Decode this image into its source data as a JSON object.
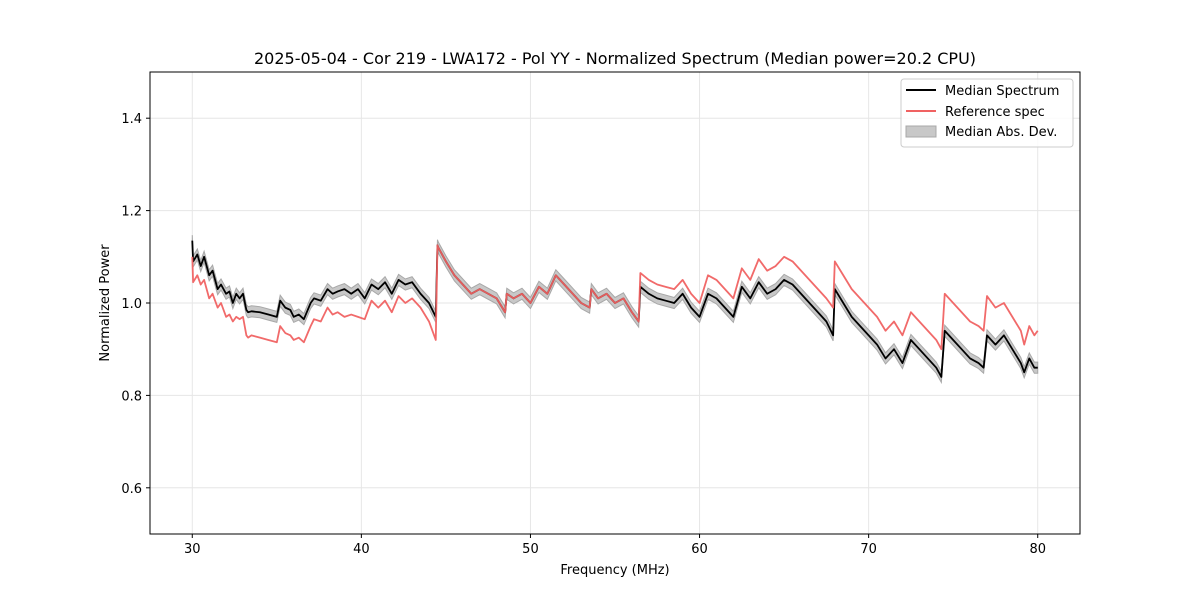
{
  "chart_data": {
    "type": "line",
    "title": "2025-05-04 - Cor 219 - LWA172 - Pol YY - Normalized Spectrum (Median power=20.2 CPU)",
    "xlabel": "Frequency (MHz)",
    "ylabel": "Normalized Power",
    "xlim": [
      27.5,
      82.5
    ],
    "ylim": [
      0.5,
      1.5
    ],
    "xticks": [
      30,
      40,
      50,
      60,
      70,
      80
    ],
    "yticks": [
      0.6,
      0.8,
      1.0,
      1.2,
      1.4
    ],
    "xtick_labels": [
      "30",
      "40",
      "50",
      "60",
      "70",
      "80"
    ],
    "ytick_labels": [
      "0.6",
      "0.8",
      "1.0",
      "1.2",
      "1.4"
    ],
    "grid": true,
    "legend_position": "top-right",
    "colors": {
      "median": "#000000",
      "reference": "#f06262",
      "mad_fill": "#c8c8c8",
      "mad_edge": "#a8a8a8",
      "grid": "#e6e6e6"
    },
    "series": [
      {
        "name": "Median Spectrum",
        "x": [
          30.0,
          30.05,
          30.3,
          30.5,
          30.7,
          31.0,
          31.2,
          31.5,
          31.7,
          32.0,
          32.2,
          32.4,
          32.6,
          32.8,
          33.0,
          33.2,
          33.3,
          33.5,
          34.0,
          34.5,
          35.0,
          35.2,
          35.5,
          35.8,
          36.0,
          36.3,
          36.6,
          37.0,
          37.2,
          37.6,
          38.0,
          38.3,
          38.6,
          39.0,
          39.4,
          39.8,
          40.2,
          40.6,
          41.0,
          41.4,
          41.8,
          42.2,
          42.6,
          43.0,
          43.5,
          44.0,
          44.4,
          44.5,
          44.55,
          45.0,
          45.5,
          46.0,
          46.5,
          47.0,
          47.5,
          48.0,
          48.5,
          48.6,
          49.0,
          49.5,
          50.0,
          50.5,
          51.0,
          51.5,
          52.0,
          52.5,
          53.0,
          53.5,
          53.6,
          54.0,
          54.5,
          55.0,
          55.5,
          56.0,
          56.4,
          56.5,
          57.0,
          57.5,
          58.0,
          58.5,
          59.0,
          59.5,
          60.0,
          60.5,
          61.0,
          61.5,
          62.0,
          62.5,
          63.0,
          63.5,
          64.0,
          64.5,
          65.0,
          65.5,
          66.0,
          66.5,
          67.0,
          67.5,
          67.9,
          68.0,
          68.5,
          69.0,
          69.5,
          70.0,
          70.5,
          71.0,
          71.5,
          72.0,
          72.5,
          73.0,
          73.5,
          74.0,
          74.3,
          74.5,
          75.0,
          75.5,
          76.0,
          76.5,
          76.8,
          77.0,
          77.5,
          78.0,
          78.5,
          79.0,
          79.2,
          79.5,
          79.8,
          80.0
        ],
        "values": [
          1.135,
          1.09,
          1.105,
          1.08,
          1.1,
          1.06,
          1.07,
          1.03,
          1.04,
          1.02,
          1.025,
          1.0,
          1.02,
          1.01,
          1.02,
          0.985,
          0.98,
          0.982,
          0.98,
          0.975,
          0.97,
          1.005,
          0.99,
          0.985,
          0.97,
          0.975,
          0.965,
          1.0,
          1.01,
          1.005,
          1.03,
          1.02,
          1.025,
          1.03,
          1.02,
          1.03,
          1.01,
          1.04,
          1.03,
          1.045,
          1.02,
          1.05,
          1.04,
          1.045,
          1.02,
          1.0,
          0.97,
          1.125,
          1.12,
          1.09,
          1.06,
          1.04,
          1.02,
          1.03,
          1.02,
          1.01,
          0.98,
          1.02,
          1.01,
          1.02,
          1.0,
          1.035,
          1.02,
          1.06,
          1.04,
          1.02,
          1.0,
          0.99,
          1.03,
          1.01,
          1.02,
          1.0,
          1.01,
          0.98,
          0.96,
          1.035,
          1.02,
          1.01,
          1.005,
          1.0,
          1.02,
          0.99,
          0.97,
          1.02,
          1.01,
          0.99,
          0.97,
          1.035,
          1.01,
          1.045,
          1.02,
          1.03,
          1.05,
          1.04,
          1.02,
          1.0,
          0.98,
          0.96,
          0.93,
          1.03,
          1.0,
          0.97,
          0.95,
          0.93,
          0.91,
          0.88,
          0.9,
          0.87,
          0.92,
          0.9,
          0.88,
          0.86,
          0.84,
          0.94,
          0.92,
          0.9,
          0.88,
          0.87,
          0.86,
          0.93,
          0.91,
          0.93,
          0.9,
          0.87,
          0.85,
          0.88,
          0.86,
          0.86
        ]
      },
      {
        "name": "Reference spec",
        "x": [
          30.0,
          30.05,
          30.3,
          30.5,
          30.7,
          31.0,
          31.2,
          31.5,
          31.7,
          32.0,
          32.2,
          32.4,
          32.6,
          32.8,
          33.0,
          33.2,
          33.3,
          33.5,
          34.0,
          34.5,
          35.0,
          35.2,
          35.5,
          35.8,
          36.0,
          36.3,
          36.6,
          37.0,
          37.2,
          37.6,
          38.0,
          38.3,
          38.6,
          39.0,
          39.4,
          39.8,
          40.2,
          40.6,
          41.0,
          41.4,
          41.8,
          42.2,
          42.6,
          43.0,
          43.5,
          44.0,
          44.4,
          44.5,
          44.55,
          45.0,
          45.5,
          46.0,
          46.5,
          47.0,
          47.5,
          48.0,
          48.5,
          48.6,
          49.0,
          49.5,
          50.0,
          50.5,
          51.0,
          51.5,
          52.0,
          52.5,
          53.0,
          53.5,
          53.6,
          54.0,
          54.5,
          55.0,
          55.5,
          56.0,
          56.4,
          56.5,
          57.0,
          57.5,
          58.0,
          58.5,
          59.0,
          59.5,
          60.0,
          60.5,
          61.0,
          61.5,
          62.0,
          62.5,
          63.0,
          63.5,
          64.0,
          64.5,
          65.0,
          65.5,
          66.0,
          66.5,
          67.0,
          67.5,
          67.9,
          68.0,
          68.5,
          69.0,
          69.5,
          70.0,
          70.5,
          71.0,
          71.5,
          72.0,
          72.5,
          73.0,
          73.5,
          74.0,
          74.3,
          74.5,
          75.0,
          75.5,
          76.0,
          76.5,
          76.8,
          77.0,
          77.5,
          78.0,
          78.5,
          79.0,
          79.2,
          79.5,
          79.8,
          80.0
        ],
        "values": [
          1.1,
          1.045,
          1.06,
          1.04,
          1.05,
          1.01,
          1.02,
          0.99,
          1.0,
          0.97,
          0.975,
          0.96,
          0.97,
          0.965,
          0.97,
          0.93,
          0.925,
          0.93,
          0.925,
          0.92,
          0.915,
          0.95,
          0.935,
          0.93,
          0.92,
          0.925,
          0.915,
          0.95,
          0.965,
          0.96,
          0.99,
          0.975,
          0.98,
          0.97,
          0.975,
          0.97,
          0.965,
          1.005,
          0.99,
          1.005,
          0.98,
          1.015,
          1.0,
          1.01,
          0.99,
          0.96,
          0.92,
          1.125,
          1.12,
          1.09,
          1.06,
          1.04,
          1.02,
          1.03,
          1.02,
          1.01,
          0.98,
          1.02,
          1.01,
          1.02,
          1.0,
          1.035,
          1.02,
          1.06,
          1.04,
          1.02,
          1.0,
          0.99,
          1.03,
          1.01,
          1.02,
          1.0,
          1.01,
          0.98,
          0.96,
          1.065,
          1.05,
          1.04,
          1.035,
          1.03,
          1.05,
          1.02,
          1.0,
          1.06,
          1.05,
          1.03,
          1.01,
          1.075,
          1.05,
          1.095,
          1.07,
          1.08,
          1.1,
          1.09,
          1.07,
          1.05,
          1.03,
          1.01,
          0.99,
          1.09,
          1.06,
          1.03,
          1.01,
          0.99,
          0.97,
          0.94,
          0.96,
          0.93,
          0.98,
          0.96,
          0.94,
          0.92,
          0.9,
          1.02,
          1.0,
          0.98,
          0.96,
          0.95,
          0.94,
          1.015,
          0.99,
          1.0,
          0.97,
          0.94,
          0.91,
          0.95,
          0.93,
          0.94
        ]
      }
    ],
    "mad_band": {
      "name": "Median Abs. Dev.",
      "lower_offset": 0.012,
      "upper_offset": 0.012
    }
  }
}
